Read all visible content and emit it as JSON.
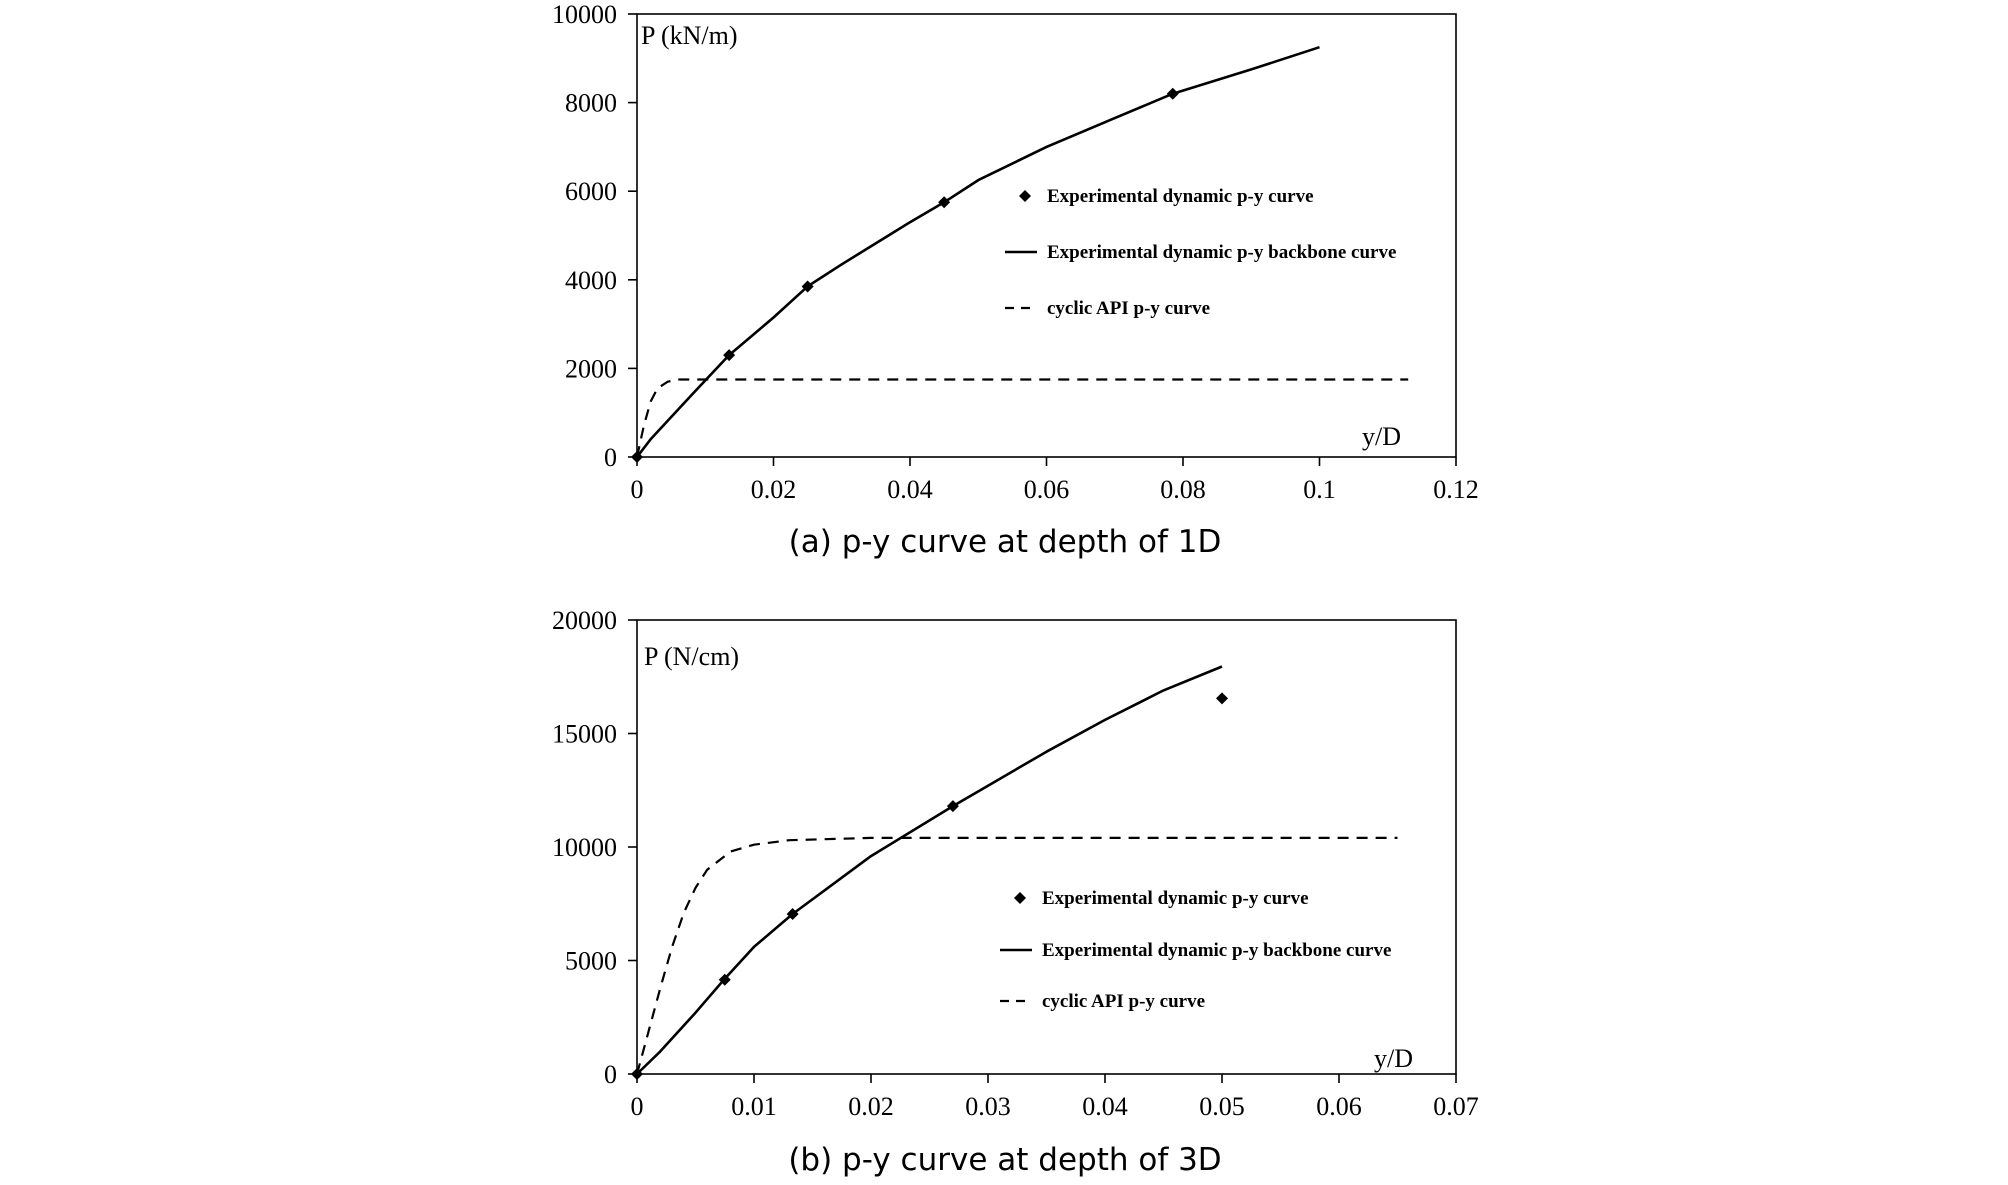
{
  "chart_data": [
    {
      "type": "line",
      "caption": "(a) p-y curve at depth of 1D",
      "ylabel": "P (kN/m)",
      "xlabel": "y/D",
      "xlim": [
        0,
        0.12
      ],
      "ylim": [
        0,
        10000
      ],
      "xticks": [
        "0",
        "0.02",
        "0.04",
        "0.06",
        "0.08",
        "0.1",
        "0.12"
      ],
      "yticks": [
        "0",
        "2000",
        "4000",
        "6000",
        "8000",
        "10000"
      ],
      "grid": false,
      "legend_position": "right-middle",
      "series": [
        {
          "name": "Experimental dynamic p-y curve",
          "style": "markers",
          "x": [
            0,
            0.0135,
            0.025,
            0.045,
            0.0785
          ],
          "y": [
            0,
            2300,
            3850,
            5750,
            8200
          ]
        },
        {
          "name": "Experimental dynamic p-y backbone curve",
          "style": "solid",
          "x": [
            0,
            0.002,
            0.005,
            0.008,
            0.0135,
            0.02,
            0.025,
            0.03,
            0.04,
            0.045,
            0.05,
            0.06,
            0.07,
            0.0785,
            0.09,
            0.1
          ],
          "y": [
            0,
            400,
            900,
            1400,
            2300,
            3150,
            3850,
            4350,
            5300,
            5750,
            6250,
            7000,
            7650,
            8200,
            8750,
            9250
          ]
        },
        {
          "name": "cyclic API p-y curve",
          "style": "dashed",
          "x": [
            0,
            0.001,
            0.002,
            0.003,
            0.0045,
            0.006,
            0.01,
            0.05,
            0.113
          ],
          "y": [
            0,
            700,
            1250,
            1550,
            1700,
            1750,
            1750,
            1750,
            1750
          ]
        }
      ]
    },
    {
      "type": "line",
      "caption": "(b) p-y curve at depth of 3D",
      "ylabel": "P (N/cm)",
      "xlabel": "y/D",
      "xlim": [
        0,
        0.07
      ],
      "ylim": [
        0,
        20000
      ],
      "xticks": [
        "0",
        "0.01",
        "0.02",
        "0.03",
        "0.04",
        "0.05",
        "0.06",
        "0.07"
      ],
      "yticks": [
        "0",
        "5000",
        "10000",
        "15000",
        "20000"
      ],
      "grid": false,
      "legend_position": "right-bottom",
      "series": [
        {
          "name": "Experimental dynamic p-y curve",
          "style": "markers",
          "x": [
            0,
            0.0075,
            0.0133,
            0.027,
            0.05
          ],
          "y": [
            0,
            4150,
            7050,
            11800,
            16550
          ]
        },
        {
          "name": "Experimental dynamic p-y backbone curve",
          "style": "solid",
          "x": [
            0,
            0.002,
            0.005,
            0.0075,
            0.01,
            0.0133,
            0.02,
            0.027,
            0.03,
            0.035,
            0.04,
            0.045,
            0.05
          ],
          "y": [
            0,
            1000,
            2700,
            4200,
            5600,
            7050,
            9600,
            11800,
            12700,
            14200,
            15600,
            16900,
            17950
          ]
        },
        {
          "name": "cyclic API p-y curve",
          "style": "dashed",
          "x": [
            0,
            0.001,
            0.002,
            0.003,
            0.004,
            0.005,
            0.006,
            0.008,
            0.01,
            0.013,
            0.02,
            0.03,
            0.065
          ],
          "y": [
            0,
            1900,
            3800,
            5600,
            7100,
            8200,
            9000,
            9800,
            10100,
            10300,
            10400,
            10400,
            10400
          ]
        }
      ]
    }
  ]
}
